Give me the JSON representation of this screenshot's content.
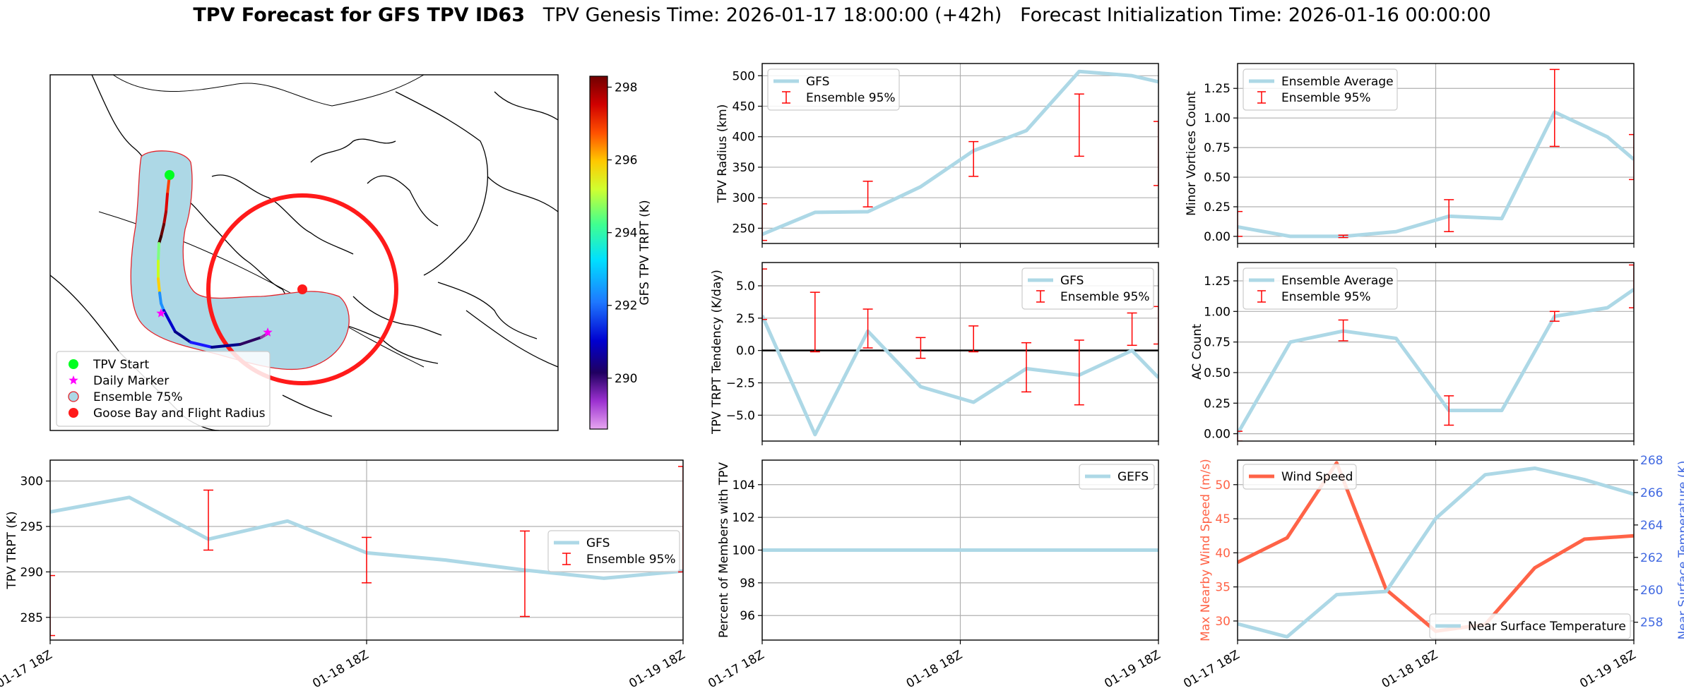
{
  "title": {
    "main": "TPV Forecast for GFS TPV ID63",
    "genesis": "TPV Genesis Time: 2026-01-17 18:00:00 (+42h)",
    "init": "Forecast Initialization Time: 2026-01-16 00:00:00"
  },
  "colors": {
    "gfs_line": "#add8e6",
    "error_bar": "#ff0000",
    "wind": "#ff6347",
    "temp_axis": "#4169e1",
    "grid": "#b0b0b0",
    "track_fill": "#add8e6",
    "circle": "#ff1a1a"
  },
  "chart_data": [
    {
      "id": "map",
      "type": "map",
      "colorbar": {
        "label": "GFS TPV TRPT (K)",
        "range": [
          288.6,
          298.3
        ],
        "ticks": [
          290,
          292,
          294,
          296,
          298
        ]
      },
      "legend": {
        "position": "lower-left",
        "entries": [
          "TPV Start",
          "Daily Marker",
          "Ensemble 75%",
          "Goose Bay and Flight Radius"
        ]
      }
    },
    {
      "id": "radius",
      "type": "line",
      "ylabel": "TPV Radius (km)",
      "ylim": [
        225,
        520
      ],
      "yticks": [
        250,
        300,
        350,
        400,
        450,
        500
      ],
      "xlim": [
        0,
        15
      ],
      "series": [
        {
          "name": "GFS",
          "x": [
            0,
            2,
            4,
            6,
            8,
            10,
            12,
            14,
            15
          ],
          "values": [
            240,
            276,
            277,
            318,
            377,
            410,
            507,
            500,
            490
          ]
        },
        {
          "name": "Ensemble 95%",
          "kind": "errorbar",
          "x": [
            0,
            4,
            8,
            12,
            15
          ],
          "low": [
            230,
            285,
            335,
            368,
            320
          ],
          "high": [
            290,
            327,
            392,
            470,
            425
          ]
        }
      ],
      "legend": "upper-left"
    },
    {
      "id": "minor",
      "type": "line",
      "ylabel": "Minor Vortices Count",
      "ylim": [
        -0.06,
        1.46
      ],
      "yticks": [
        0.0,
        0.25,
        0.5,
        0.75,
        1.0,
        1.25
      ],
      "ytick_labels": [
        "0.00",
        "0.25",
        "0.50",
        "0.75",
        "1.00",
        "1.25"
      ],
      "xlim": [
        0,
        15
      ],
      "series": [
        {
          "name": "Ensemble Average",
          "x": [
            0,
            2,
            4,
            6,
            8,
            10,
            12,
            14,
            15
          ],
          "values": [
            0.08,
            0.0,
            0.0,
            0.04,
            0.17,
            0.15,
            1.05,
            0.84,
            0.65
          ]
        },
        {
          "name": "Ensemble 95%",
          "kind": "errorbar",
          "x": [
            0,
            4,
            8,
            12,
            15
          ],
          "low": [
            0.0,
            -0.01,
            0.04,
            0.76,
            0.48
          ],
          "high": [
            0.21,
            0.01,
            0.31,
            1.41,
            0.86
          ]
        }
      ],
      "legend": "upper-left"
    },
    {
      "id": "tendency",
      "type": "line",
      "ylabel": "TPV TRPT Tendency (K/day)",
      "ylim": [
        -7.0,
        6.8
      ],
      "yticks": [
        -5.0,
        -2.5,
        0.0,
        2.5,
        5.0
      ],
      "ytick_labels": [
        "−5.0",
        "−2.5",
        "0.0",
        "2.5",
        "5.0"
      ],
      "hline": 0,
      "xlim": [
        0,
        15
      ],
      "series": [
        {
          "name": "GFS",
          "x": [
            0,
            2,
            4,
            6,
            8,
            10,
            12,
            14,
            15
          ],
          "values": [
            2.7,
            -6.5,
            1.5,
            -2.8,
            -4.0,
            -1.4,
            -1.9,
            0.0,
            -2.1
          ]
        },
        {
          "name": "Ensemble 95%",
          "kind": "errorbar",
          "x": [
            0,
            2,
            4,
            6,
            8,
            10,
            12,
            14,
            15
          ],
          "low": [
            2.4,
            -0.1,
            0.2,
            -0.6,
            -0.1,
            -3.2,
            -4.2,
            0.4,
            0.5
          ],
          "high": [
            6.3,
            4.5,
            3.2,
            1.0,
            1.9,
            0.6,
            0.8,
            2.9,
            3.4
          ]
        }
      ],
      "legend": "upper-right"
    },
    {
      "id": "ac",
      "type": "line",
      "ylabel": "AC Count",
      "ylim": [
        -0.06,
        1.4
      ],
      "yticks": [
        0.0,
        0.25,
        0.5,
        0.75,
        1.0,
        1.25
      ],
      "ytick_labels": [
        "0.00",
        "0.25",
        "0.50",
        "0.75",
        "1.00",
        "1.25"
      ],
      "xlim": [
        0,
        15
      ],
      "series": [
        {
          "name": "Ensemble Average",
          "x": [
            0,
            2,
            4,
            6,
            8,
            10,
            12,
            14,
            15
          ],
          "values": [
            0.0,
            0.75,
            0.84,
            0.78,
            0.19,
            0.19,
            0.96,
            1.03,
            1.18
          ]
        },
        {
          "name": "Ensemble 95%",
          "kind": "errorbar",
          "x": [
            0,
            4,
            8,
            12,
            15
          ],
          "low": [
            -0.06,
            0.76,
            0.07,
            0.92,
            1.03
          ],
          "high": [
            0.02,
            0.93,
            0.31,
            1.0,
            1.38
          ]
        }
      ],
      "legend": "upper-left"
    },
    {
      "id": "trpt",
      "type": "line",
      "ylabel": "TPV TRPT (K)",
      "ylim": [
        282.5,
        302.3
      ],
      "yticks": [
        285,
        290,
        295,
        300
      ],
      "xlim": [
        0,
        8
      ],
      "xticks": [
        0,
        4,
        8
      ],
      "xtick_labels": [
        "01-17 18Z",
        "01-18 18Z",
        "01-19 18Z"
      ],
      "series": [
        {
          "name": "GFS",
          "x": [
            0,
            1,
            2,
            3,
            4,
            5,
            6,
            7,
            8
          ],
          "values": [
            296.6,
            298.2,
            293.6,
            295.6,
            292.1,
            291.3,
            290.2,
            289.3,
            290.1
          ]
        },
        {
          "name": "Ensemble 95%",
          "kind": "errorbar",
          "x": [
            0,
            2,
            4,
            6,
            8
          ],
          "low": [
            283.0,
            292.4,
            288.8,
            285.1,
            290.0
          ],
          "high": [
            289.6,
            299.0,
            293.8,
            294.5,
            301.6
          ]
        }
      ],
      "legend": "center-right"
    },
    {
      "id": "percent",
      "type": "line",
      "ylabel": "Percent of Members with TPV",
      "ylim": [
        94.5,
        105.5
      ],
      "yticks": [
        96,
        98,
        100,
        102,
        104
      ],
      "xlim": [
        0,
        8
      ],
      "xticks": [
        0,
        4,
        8
      ],
      "xtick_labels": [
        "01-17 18Z",
        "01-18 18Z",
        "01-19 18Z"
      ],
      "series": [
        {
          "name": "GEFS",
          "x": [
            0,
            8
          ],
          "values": [
            100,
            100
          ]
        }
      ],
      "legend": "upper-right"
    },
    {
      "id": "wind_temp",
      "type": "line",
      "ylabel": "Max Nearby Wind Speed (m/s)",
      "ylim": [
        27.2,
        53.6
      ],
      "yticks": [
        30,
        35,
        40,
        45,
        50
      ],
      "y2label": "Near Surface Temperature (K)",
      "y2lim": [
        256.9,
        268.0
      ],
      "y2ticks": [
        258,
        260,
        262,
        264,
        266,
        268
      ],
      "xlim": [
        0,
        8
      ],
      "xticks": [
        0,
        4,
        8
      ],
      "xtick_labels": [
        "01-17 18Z",
        "01-18 18Z",
        "01-19 18Z"
      ],
      "series": [
        {
          "name": "Wind Speed",
          "axis": "left",
          "x": [
            0,
            1,
            2,
            3,
            4,
            5,
            6,
            7,
            8
          ],
          "values": [
            38.6,
            42.2,
            53.2,
            34.6,
            28.5,
            29.5,
            37.8,
            42.0,
            42.5
          ]
        },
        {
          "name": "Near Surface Temperature",
          "axis": "right",
          "x": [
            0,
            1,
            2,
            3,
            4,
            5,
            6,
            7,
            8
          ],
          "values": [
            257.9,
            257.1,
            259.7,
            259.9,
            264.4,
            267.1,
            267.5,
            266.8,
            265.9
          ]
        }
      ],
      "legend_left": "upper-left",
      "legend_right": "lower-right"
    }
  ]
}
